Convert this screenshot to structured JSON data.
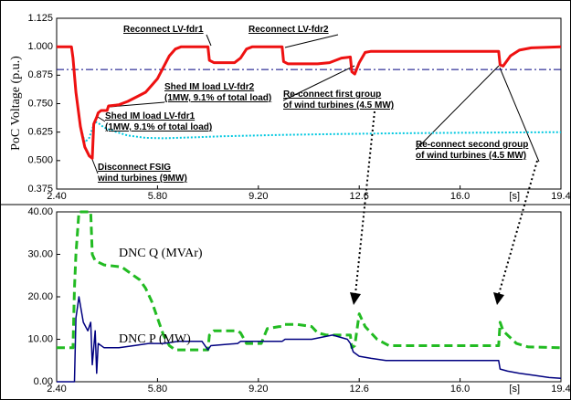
{
  "chart_data": [
    {
      "type": "line",
      "ylabel": "PoC Voltage (p.u.)",
      "xlabel": "[s]",
      "xlim": [
        2.4,
        19.4
      ],
      "xticks": [
        {
          "value": 2.4,
          "label": "2.40"
        },
        {
          "value": 5.8,
          "label": "5.80"
        },
        {
          "value": 9.2,
          "label": "9.20"
        },
        12.6,
        {
          "value": 16,
          "label": "16.0"
        },
        19.4
      ],
      "ylim": [
        0.375,
        1.125
      ],
      "yticks": [
        0.375,
        {
          "value": 0.5,
          "label": "0.500"
        },
        0.625,
        {
          "value": 0.75,
          "label": "0.750"
        },
        0.875,
        {
          "value": 1,
          "label": "1.000"
        },
        1.125
      ],
      "reference_line": {
        "value": 0.9,
        "color": "#000080",
        "linestyle": "dashdot"
      },
      "series": [
        {
          "color": "#00c8e0",
          "linestyle": "dotted",
          "width": 2,
          "x": [
            2.4,
            2.9,
            2.95,
            3.05,
            3.2,
            3.35,
            3.5,
            3.6,
            3.7,
            3.8,
            4.0,
            4.3,
            4.8,
            5.4,
            6.0,
            7.0,
            8.0,
            10.0,
            12.0,
            14.0,
            16.0,
            19.4
          ],
          "values": [
            1.0,
            1.0,
            0.95,
            0.8,
            0.65,
            0.58,
            0.6,
            0.64,
            0.67,
            0.665,
            0.645,
            0.63,
            0.61,
            0.6,
            0.598,
            0.602,
            0.607,
            0.613,
            0.617,
            0.62,
            0.622,
            0.625
          ]
        },
        {
          "color": "#ee1111",
          "linestyle": "solid",
          "width": 3,
          "x": [
            2.4,
            2.9,
            2.95,
            3.05,
            3.2,
            3.35,
            3.5,
            3.6,
            3.65,
            3.75,
            3.8,
            3.9,
            4.1,
            4.15,
            4.5,
            4.8,
            5.1,
            5.4,
            5.6,
            5.8,
            6.0,
            6.2,
            6.4,
            6.6,
            7.5,
            7.55,
            7.7,
            8.4,
            8.6,
            8.8,
            9.0,
            10.0,
            10.05,
            10.2,
            11.2,
            11.6,
            12.0,
            12.3,
            12.35,
            12.45,
            12.6,
            12.8,
            13.0,
            17.3,
            17.35,
            17.45,
            17.7,
            18.0,
            18.4,
            19.4
          ],
          "values": [
            1.0,
            1.0,
            0.95,
            0.8,
            0.65,
            0.56,
            0.52,
            0.51,
            0.66,
            0.69,
            0.71,
            0.72,
            0.72,
            0.74,
            0.745,
            0.76,
            0.78,
            0.8,
            0.83,
            0.86,
            0.91,
            0.96,
            0.99,
            1.0,
            1.0,
            0.94,
            0.93,
            0.93,
            0.95,
            0.99,
            1.0,
            1.0,
            0.935,
            0.925,
            0.925,
            0.93,
            0.95,
            0.955,
            0.89,
            0.88,
            0.93,
            0.975,
            0.98,
            0.98,
            0.92,
            0.915,
            0.96,
            0.985,
            0.995,
            1.0
          ]
        }
      ],
      "annotations": [
        {
          "lines": [
            "Reconnect LV-fdr1"
          ]
        },
        {
          "lines": [
            "Reconnect LV-fdr2"
          ]
        },
        {
          "lines": [
            "Shed IM load LV-fdr2",
            "(1MW, 9.1% of total load)"
          ]
        },
        {
          "lines": [
            "Shed IM load LV-fdr1",
            "(1MW, 9.1% of total load)"
          ]
        },
        {
          "lines": [
            "Re-connect first group",
            "of wind turbines (4.5 MW)"
          ]
        },
        {
          "lines": [
            "Disconnect FSIG",
            "wind turbines (9MW)"
          ]
        },
        {
          "lines": [
            "Re-connect second group",
            "of wind turbines (4.5 MW)"
          ]
        }
      ]
    },
    {
      "type": "line",
      "xlabel": "[s]",
      "xlim": [
        2.4,
        19.4
      ],
      "xticks": [
        {
          "value": 2.4,
          "label": "2.40"
        },
        {
          "value": 5.8,
          "label": "5.80"
        },
        {
          "value": 9.2,
          "label": "9.20"
        },
        12.6,
        {
          "value": 16,
          "label": "16.0"
        },
        19.4
      ],
      "ylim": [
        0,
        40
      ],
      "yticks": [
        {
          "value": 0,
          "label": "0.00"
        },
        {
          "value": 10,
          "label": "10.00"
        },
        {
          "value": 20,
          "label": "20.00"
        },
        {
          "value": 30,
          "label": "30.00"
        },
        {
          "value": 40,
          "label": "40.00"
        }
      ],
      "series": [
        {
          "name": "DNC Q (MVAr)",
          "color": "#22bb22",
          "linestyle": "dashed",
          "width": 3,
          "x": [
            2.4,
            2.95,
            3.0,
            3.05,
            3.15,
            3.25,
            3.55,
            3.6,
            3.7,
            4.0,
            4.6,
            4.8,
            5.0,
            5.2,
            5.4,
            5.6,
            5.8,
            6.0,
            6.2,
            6.4,
            7.5,
            7.55,
            7.7,
            8.5,
            8.6,
            8.8,
            9.3,
            9.5,
            9.9,
            10.0,
            10.1,
            10.5,
            11.0,
            11.2,
            11.5,
            12.3,
            12.35,
            12.45,
            12.6,
            12.8,
            13.2,
            13.6,
            17.3,
            17.35,
            17.45,
            17.6,
            17.9,
            18.3,
            19.4
          ],
          "values": [
            8,
            8,
            22,
            30,
            40,
            40,
            40,
            30,
            28.5,
            27.5,
            27,
            26,
            25,
            24,
            22,
            19,
            15,
            11,
            8.5,
            7.5,
            7.5,
            11,
            12,
            12,
            11.5,
            9,
            9,
            12.5,
            13,
            13,
            13.5,
            13.5,
            13,
            11.5,
            11,
            11,
            8,
            8.5,
            16,
            13,
            10,
            8.5,
            8.5,
            14,
            12,
            11,
            9,
            8.2,
            8.0
          ]
        },
        {
          "name": "DNC P (MW)",
          "color": "#000080",
          "linestyle": "solid",
          "width": 1.5,
          "x": [
            2.4,
            2.95,
            3.0,
            3.05,
            3.15,
            3.3,
            3.45,
            3.55,
            3.6,
            3.7,
            3.75,
            3.8,
            4.0,
            4.5,
            5.0,
            5.5,
            6.0,
            6.5,
            7.3,
            7.5,
            7.6,
            8.5,
            8.6,
            9.2,
            10.0,
            10.1,
            11.0,
            11.7,
            12.2,
            12.3,
            12.4,
            12.6,
            13.0,
            13.5,
            14.0,
            17.3,
            17.35,
            17.6,
            18.0,
            18.5,
            19.0,
            19.4
          ],
          "values": [
            0,
            0,
            0,
            15,
            20,
            14,
            12,
            14,
            4,
            12,
            2,
            9,
            8,
            8,
            8.5,
            9,
            9,
            9.5,
            9.5,
            7.5,
            8.5,
            9,
            9.5,
            9.5,
            9.5,
            10,
            10,
            11,
            10,
            9,
            7,
            6,
            5.5,
            5,
            5,
            5,
            3,
            2.5,
            2,
            1.5,
            1,
            0.8
          ]
        }
      ]
    }
  ]
}
